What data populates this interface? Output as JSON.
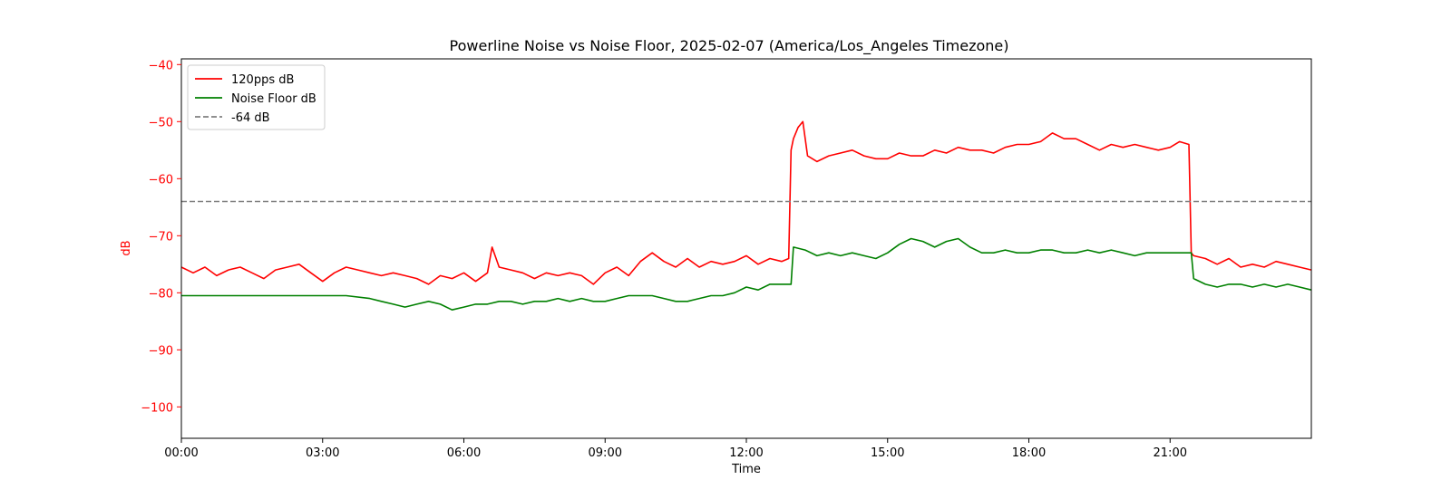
{
  "chart_data": {
    "type": "line",
    "title": "Powerline Noise vs Noise Floor, 2025-02-07 (America/Los_Angeles Timezone)",
    "xlabel": "Time",
    "ylabel": "dB",
    "xlim": [
      0,
      24
    ],
    "ylim": [
      -105.5,
      -39
    ],
    "xticks": [
      {
        "value": 0,
        "label": "00:00"
      },
      {
        "value": 3,
        "label": "03:00"
      },
      {
        "value": 6,
        "label": "06:00"
      },
      {
        "value": 9,
        "label": "09:00"
      },
      {
        "value": 12,
        "label": "12:00"
      },
      {
        "value": 15,
        "label": "15:00"
      },
      {
        "value": 18,
        "label": "18:00"
      },
      {
        "value": 21,
        "label": "21:00"
      }
    ],
    "yticks": [
      {
        "value": -40,
        "label": "−40"
      },
      {
        "value": -50,
        "label": "−50"
      },
      {
        "value": -60,
        "label": "−60"
      },
      {
        "value": -70,
        "label": "−70"
      },
      {
        "value": -80,
        "label": "−80"
      },
      {
        "value": -90,
        "label": "−90"
      },
      {
        "value": -100,
        "label": "−100"
      }
    ],
    "ytick_color": "#ff0000",
    "ylabel_color": "#ff0000",
    "grid": false,
    "legend_position": "upper-left",
    "series": [
      {
        "name": "120pps dB",
        "color": "#ff0000",
        "style": "solid",
        "x": [
          0,
          0.25,
          0.5,
          0.75,
          1,
          1.25,
          1.5,
          1.75,
          2,
          2.25,
          2.5,
          2.75,
          3,
          3.25,
          3.5,
          3.75,
          4,
          4.25,
          4.5,
          4.75,
          5,
          5.25,
          5.5,
          5.75,
          6,
          6.25,
          6.5,
          6.6,
          6.75,
          7,
          7.25,
          7.5,
          7.75,
          8,
          8.25,
          8.5,
          8.75,
          9,
          9.25,
          9.5,
          9.75,
          10,
          10.25,
          10.5,
          10.75,
          11,
          11.25,
          11.5,
          11.75,
          12,
          12.25,
          12.5,
          12.75,
          12.9,
          12.95,
          13,
          13.1,
          13.2,
          13.3,
          13.5,
          13.75,
          14,
          14.25,
          14.5,
          14.75,
          15,
          15.25,
          15.5,
          15.75,
          16,
          16.25,
          16.5,
          16.75,
          17,
          17.25,
          17.5,
          17.75,
          18,
          18.25,
          18.5,
          18.75,
          19,
          19.25,
          19.5,
          19.75,
          20,
          20.25,
          20.5,
          20.75,
          21,
          21.2,
          21.4,
          21.45,
          21.5,
          21.75,
          22,
          22.25,
          22.5,
          22.75,
          23,
          23.25,
          23.5,
          23.75,
          24
        ],
        "y": [
          -75.5,
          -76.5,
          -75.5,
          -77,
          -76,
          -75.5,
          -76.5,
          -77.5,
          -76,
          -75.5,
          -75,
          -76.5,
          -78,
          -76.5,
          -75.5,
          -76,
          -76.5,
          -77,
          -76.5,
          -77,
          -77.5,
          -78.5,
          -77,
          -77.5,
          -76.5,
          -78,
          -76.5,
          -72,
          -75.5,
          -76,
          -76.5,
          -77.5,
          -76.5,
          -77,
          -76.5,
          -77,
          -78.5,
          -76.5,
          -75.5,
          -77,
          -74.5,
          -73,
          -74.5,
          -75.5,
          -74,
          -75.5,
          -74.5,
          -75,
          -74.5,
          -73.5,
          -75,
          -74,
          -74.5,
          -74,
          -55,
          -53,
          -51,
          -50,
          -56,
          -57,
          -56,
          -55.5,
          -55,
          -56,
          -56.5,
          -56.5,
          -55.5,
          -56,
          -56,
          -55,
          -55.5,
          -54.5,
          -55,
          -55,
          -55.5,
          -54.5,
          -54,
          -54,
          -53.5,
          -52,
          -53,
          -53,
          -54,
          -55,
          -54,
          -54.5,
          -54,
          -54.5,
          -55,
          -54.5,
          -53.5,
          -54,
          -73,
          -73.5,
          -74,
          -75,
          -74,
          -75.5,
          -75,
          -75.5,
          -74.5,
          -75,
          -75.5,
          -76
        ]
      },
      {
        "name": "Noise Floor dB",
        "color": "#008000",
        "style": "solid",
        "x": [
          0,
          0.25,
          0.5,
          1,
          1.5,
          2,
          2.5,
          3,
          3.25,
          3.5,
          4,
          4.25,
          4.5,
          4.75,
          5,
          5.25,
          5.5,
          5.75,
          6,
          6.25,
          6.5,
          6.75,
          7,
          7.25,
          7.5,
          7.75,
          8,
          8.25,
          8.5,
          8.75,
          9,
          9.25,
          9.5,
          9.75,
          10,
          10.25,
          10.5,
          10.75,
          11,
          11.25,
          11.5,
          11.75,
          12,
          12.25,
          12.5,
          12.75,
          12.95,
          13,
          13.25,
          13.5,
          13.75,
          14,
          14.25,
          14.5,
          14.75,
          15,
          15.25,
          15.5,
          15.75,
          16,
          16.25,
          16.5,
          16.75,
          17,
          17.25,
          17.5,
          17.75,
          18,
          18.25,
          18.5,
          18.75,
          19,
          19.25,
          19.5,
          19.75,
          20,
          20.25,
          20.5,
          20.75,
          21,
          21.25,
          21.4,
          21.45,
          21.5,
          21.75,
          22,
          22.25,
          22.5,
          22.75,
          23,
          23.25,
          23.5,
          23.75,
          24
        ],
        "y": [
          -80.5,
          -80.5,
          -80.5,
          -80.5,
          -80.5,
          -80.5,
          -80.5,
          -80.5,
          -80.5,
          -80.5,
          -81,
          -81.5,
          -82,
          -82.5,
          -82,
          -81.5,
          -82,
          -83,
          -82.5,
          -82,
          -82,
          -81.5,
          -81.5,
          -82,
          -81.5,
          -81.5,
          -81,
          -81.5,
          -81,
          -81.5,
          -81.5,
          -81,
          -80.5,
          -80.5,
          -80.5,
          -81,
          -81.5,
          -81.5,
          -81,
          -80.5,
          -80.5,
          -80,
          -79,
          -79.5,
          -78.5,
          -78.5,
          -78.5,
          -72,
          -72.5,
          -73.5,
          -73,
          -73.5,
          -73,
          -73.5,
          -74,
          -73,
          -71.5,
          -70.5,
          -71,
          -72,
          -71,
          -70.5,
          -72,
          -73,
          -73,
          -72.5,
          -73,
          -73,
          -72.5,
          -72.5,
          -73,
          -73,
          -72.5,
          -73,
          -72.5,
          -73,
          -73.5,
          -73,
          -73,
          -73,
          -73,
          -73,
          -73,
          -77.5,
          -78.5,
          -79,
          -78.5,
          -78.5,
          -79,
          -78.5,
          -79,
          -78.5,
          -79,
          -79.5
        ]
      },
      {
        "name": "-64 dB",
        "color": "#808080",
        "style": "dashed",
        "x": [
          0,
          24
        ],
        "y": [
          -64,
          -64
        ]
      }
    ]
  }
}
